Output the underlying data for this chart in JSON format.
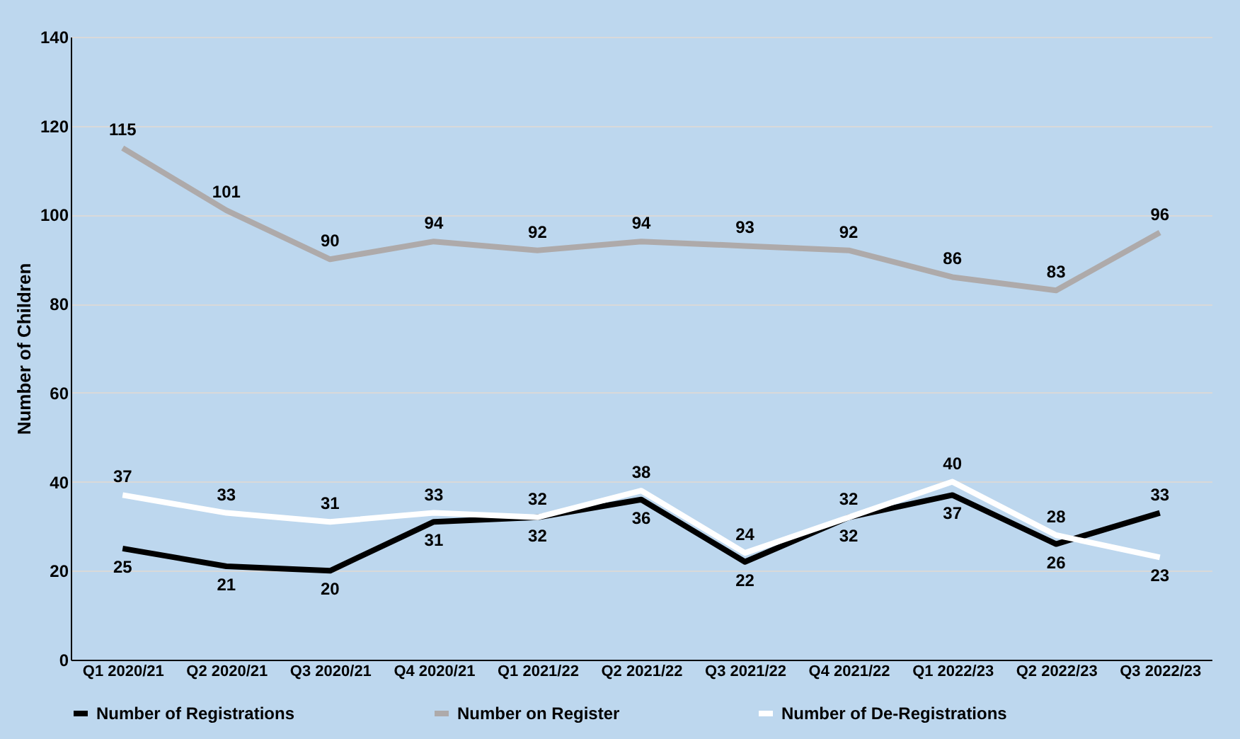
{
  "chart_data": {
    "type": "line",
    "ylabel": "Number of Children",
    "categories": [
      "Q1 2020/21",
      "Q2 2020/21",
      "Q3 2020/21",
      "Q4 2020/21",
      "Q1 2021/22",
      "Q2 2021/22",
      "Q3 2021/22",
      "Q4 2021/22",
      "Q1 2022/23",
      "Q2 2022/23",
      "Q3 2022/23"
    ],
    "series": [
      {
        "name": "Number of Registrations",
        "color": "#000000",
        "values": [
          25,
          21,
          20,
          31,
          32,
          36,
          22,
          32,
          37,
          26,
          33
        ]
      },
      {
        "name": "Number on Register",
        "color": "#aeaaaa",
        "values": [
          115,
          101,
          90,
          94,
          92,
          94,
          93,
          92,
          86,
          83,
          96
        ]
      },
      {
        "name": "Number of De-Registrations",
        "color": "#ffffff",
        "values": [
          37,
          33,
          31,
          33,
          32,
          38,
          24,
          32,
          40,
          28,
          23
        ]
      }
    ],
    "ylim": [
      0,
      140
    ],
    "yticks": [
      0,
      20,
      40,
      60,
      80,
      100,
      120,
      140
    ],
    "grid": "y",
    "legend": "bottom",
    "data_labels": true,
    "marker": "none",
    "line_style": "solid"
  }
}
